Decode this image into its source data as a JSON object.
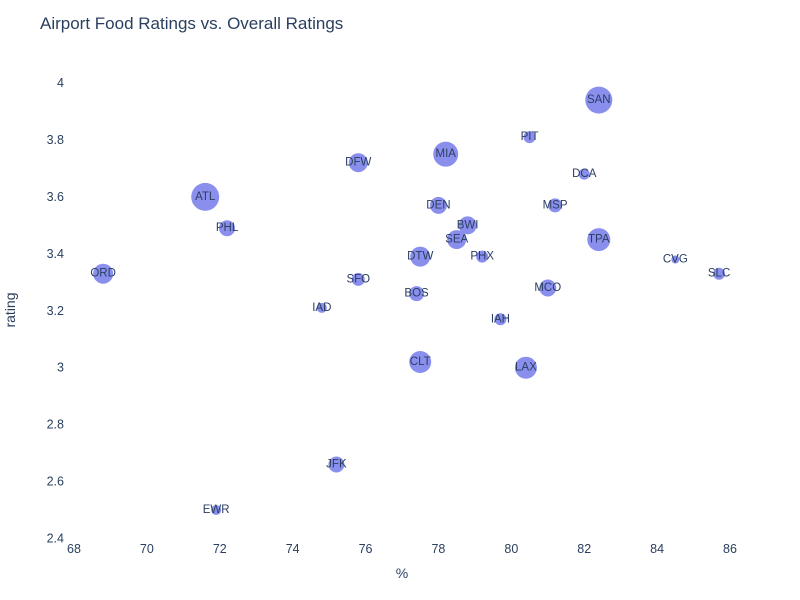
{
  "title": "Airport Food Ratings vs. Overall Ratings",
  "colors": {
    "marker": "#8a8fee",
    "text": "#2a3f5f",
    "background": "#ffffff"
  },
  "chart_data": {
    "type": "scatter",
    "title": "Airport Food Ratings vs. Overall Ratings",
    "xlabel": "%",
    "ylabel": "rating",
    "xlim": [
      67.5,
      86.5
    ],
    "ylim": [
      2.4,
      4.05
    ],
    "grid": false,
    "legend": "none",
    "x_ticks": [
      "68",
      "70",
      "72",
      "74",
      "76",
      "78",
      "80",
      "82",
      "84",
      "86"
    ],
    "y_ticks": [
      "2.4",
      "2.6",
      "2.8",
      "3",
      "3.2",
      "3.4",
      "3.6",
      "3.8",
      "4"
    ],
    "points": [
      {
        "label": "SAN",
        "x": 82.4,
        "y": 3.94,
        "r": 13.5
      },
      {
        "label": "PIT",
        "x": 80.5,
        "y": 3.81,
        "r": 6
      },
      {
        "label": "MIA",
        "x": 78.2,
        "y": 3.75,
        "r": 12.5
      },
      {
        "label": "DFW",
        "x": 75.8,
        "y": 3.72,
        "r": 9.5
      },
      {
        "label": "DCA",
        "x": 82.0,
        "y": 3.68,
        "r": 5.5
      },
      {
        "label": "ATL",
        "x": 71.6,
        "y": 3.6,
        "r": 14
      },
      {
        "label": "DEN",
        "x": 78.0,
        "y": 3.57,
        "r": 8.5
      },
      {
        "label": "MSP",
        "x": 81.2,
        "y": 3.57,
        "r": 7
      },
      {
        "label": "BWI",
        "x": 78.8,
        "y": 3.5,
        "r": 9
      },
      {
        "label": "PHL",
        "x": 72.2,
        "y": 3.49,
        "r": 8
      },
      {
        "label": "SEA",
        "x": 78.5,
        "y": 3.45,
        "r": 9.5
      },
      {
        "label": "TPA",
        "x": 82.4,
        "y": 3.45,
        "r": 11.5
      },
      {
        "label": "PHX",
        "x": 79.2,
        "y": 3.39,
        "r": 6
      },
      {
        "label": "DTW",
        "x": 77.5,
        "y": 3.39,
        "r": 10
      },
      {
        "label": "CVG",
        "x": 84.5,
        "y": 3.38,
        "r": 4
      },
      {
        "label": "ORD",
        "x": 68.8,
        "y": 3.33,
        "r": 10
      },
      {
        "label": "SLC",
        "x": 85.7,
        "y": 3.33,
        "r": 6
      },
      {
        "label": "SFO",
        "x": 75.8,
        "y": 3.31,
        "r": 6.5
      },
      {
        "label": "MCO",
        "x": 81.0,
        "y": 3.28,
        "r": 8.5
      },
      {
        "label": "BOS",
        "x": 77.4,
        "y": 3.26,
        "r": 7.5
      },
      {
        "label": "IAD",
        "x": 74.8,
        "y": 3.21,
        "r": 5
      },
      {
        "label": "IAH",
        "x": 79.7,
        "y": 3.17,
        "r": 6
      },
      {
        "label": "CLT",
        "x": 77.5,
        "y": 3.02,
        "r": 11
      },
      {
        "label": "LAX",
        "x": 80.4,
        "y": 3.0,
        "r": 11
      },
      {
        "label": "JFK",
        "x": 75.2,
        "y": 2.66,
        "r": 8
      },
      {
        "label": "EWR",
        "x": 71.9,
        "y": 2.5,
        "r": 5
      }
    ]
  }
}
